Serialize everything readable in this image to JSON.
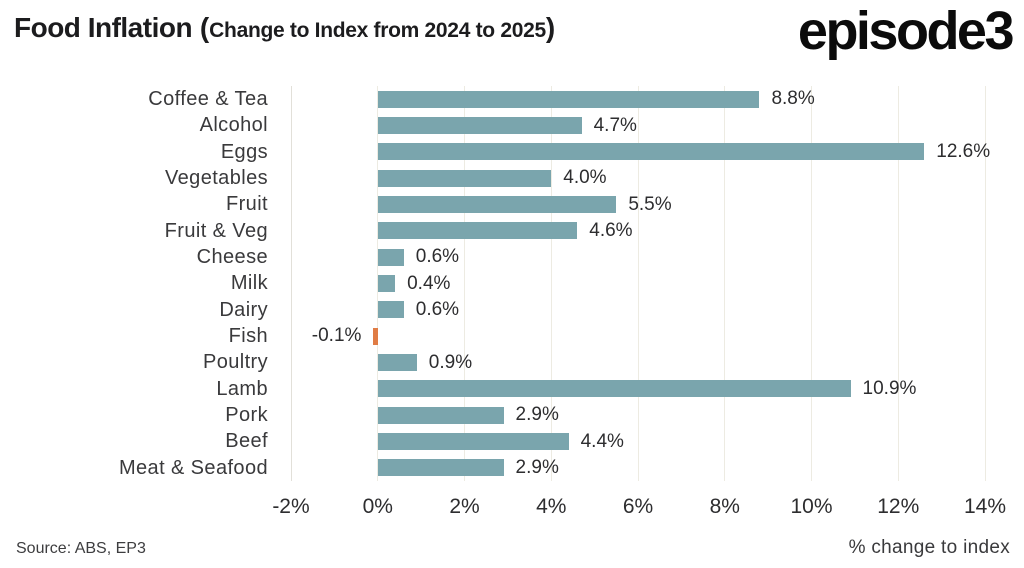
{
  "header": {
    "title_main": "Food Inflation",
    "title_paren_open": "(",
    "title_sub": "Change to Index from 2024 to 2025",
    "title_paren_close": ")",
    "logo_text": "episode3"
  },
  "footer": {
    "source": "Source: ABS, EP3"
  },
  "chart_data": {
    "type": "bar",
    "orientation": "horizontal",
    "title": "Food Inflation (Change to Index from 2024 to 2025)",
    "categories": [
      "Coffee & Tea",
      "Alcohol",
      "Eggs",
      "Vegetables",
      "Fruit",
      "Fruit & Veg",
      "Cheese",
      "Milk",
      "Dairy",
      "Fish",
      "Poultry",
      "Lamb",
      "Pork",
      "Beef",
      "Meat & Seafood"
    ],
    "values": [
      8.8,
      4.7,
      12.6,
      4.0,
      5.5,
      4.6,
      0.6,
      0.4,
      0.6,
      -0.1,
      0.9,
      10.9,
      2.9,
      4.4,
      2.9
    ],
    "value_labels": [
      "8.8%",
      "4.7%",
      "12.6%",
      "4.0%",
      "5.5%",
      "4.6%",
      "0.6%",
      "0.4%",
      "0.6%",
      "-0.1%",
      "0.9%",
      "10.9%",
      "2.9%",
      "4.4%",
      "2.9%"
    ],
    "xlabel": "% change to index",
    "xlim": [
      -2,
      14
    ],
    "xticks": [
      "-2%",
      "0%",
      "2%",
      "4%",
      "6%",
      "8%",
      "10%",
      "12%",
      "14%"
    ],
    "grid": "vertical",
    "legend": "none",
    "bar_color": "#7AA5AD",
    "negative_bar_color": "#E07C45",
    "gridline_color": "#EDEBE2"
  }
}
